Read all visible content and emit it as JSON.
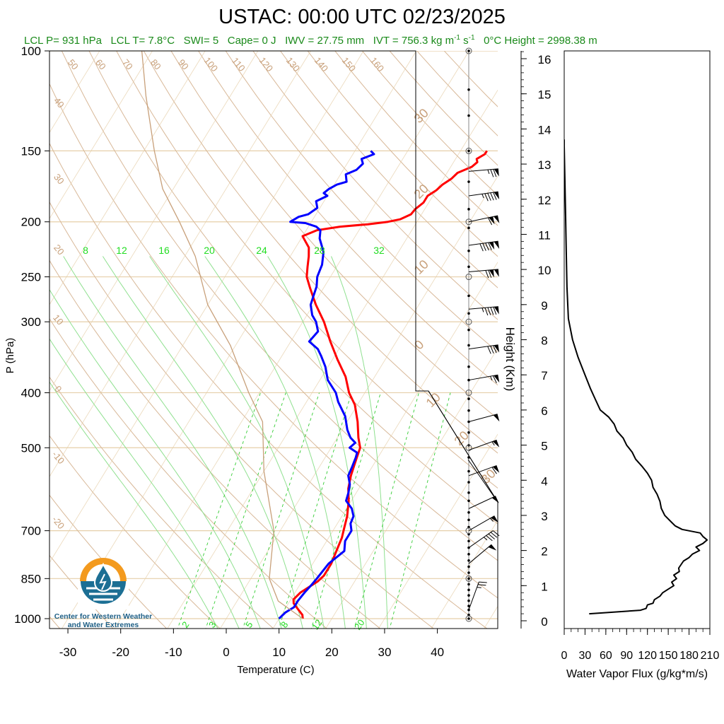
{
  "header": {
    "title": "USTAC: 00:00 UTC 02/23/2025",
    "lcl_p": "LCL P= 931 hPa",
    "lcl_t": "LCL T= 7.8°C",
    "swi": "SWI= 5",
    "cape": "Cape= 0 J",
    "iwv": "IWV = 27.75 mm",
    "ivt_prefix": "IVT = 756.3 kg m",
    "ivt_mid": " s",
    "ivt_exp": "-1",
    "freezing": "0°C Height = 2998.38 m"
  },
  "logo": {
    "line1": "Center for Western Weather",
    "line2": "and Water Extremes",
    "colors": {
      "sun": "#f39a1e",
      "water": "#1c6f94",
      "drop": "#ffffff"
    }
  },
  "chart_data": [
    {
      "type": "line",
      "subtype": "skew-t log-p",
      "xlabel": "Temperature (C)",
      "ylabel": "P (hPa)",
      "xlim": [
        -34,
        48
      ],
      "ylim": [
        1050,
        100
      ],
      "y_scale": "log",
      "x_ticks": [
        -30,
        -20,
        -10,
        0,
        10,
        20,
        30,
        40
      ],
      "x_tick_labels": [
        "-30",
        "-20",
        "-10",
        "0",
        "10",
        "20",
        "30",
        "40"
      ],
      "y_ticks": [
        100,
        150,
        200,
        250,
        300,
        400,
        500,
        700,
        850,
        1000
      ],
      "y_tick_labels": [
        "100",
        "150",
        "200",
        "250",
        "300",
        "400",
        "500",
        "700",
        "850",
        "1000"
      ],
      "dry_adiabat_labels": [
        "-20",
        "-10",
        "0",
        "10",
        "20",
        "30",
        "40",
        "50",
        "60",
        "70",
        "80",
        "90",
        "100",
        "110",
        "120",
        "130",
        "140",
        "150",
        "160"
      ],
      "moist_adiabat_labels": [
        "8",
        "12",
        "16",
        "20",
        "24",
        "28",
        "32"
      ],
      "mixing_ratio_labels": [
        "2",
        "3",
        "5",
        "8",
        "12",
        "20"
      ],
      "isotherm_box_labels": [
        "30",
        "20",
        "10",
        "0",
        "-10",
        "-20",
        "-30"
      ],
      "colors": {
        "temperature": "#ff0000",
        "dewpoint": "#0000ff",
        "parcel": "#c8a07a",
        "dry_adiabat": "#d8b898",
        "moist_adiabat": "#8fe08f",
        "mixing_ratio": "#33cc33",
        "isobar": "#e6cfa9",
        "adiabat_label": "#c8a07a",
        "moist_label": "#22dd22"
      },
      "series": [
        {
          "name": "",
          "role": "temperature",
          "points": [
            [
              14.5,
              1000
            ],
            [
              14,
              985
            ],
            [
              13,
              970
            ],
            [
              12,
              955
            ],
            [
              11,
              940
            ],
            [
              10.5,
              925
            ],
            [
              11,
              900
            ],
            [
              12,
              880
            ],
            [
              13,
              860
            ],
            [
              13.5,
              840
            ],
            [
              13.5,
              800
            ],
            [
              13,
              760
            ],
            [
              12.5,
              720
            ],
            [
              12,
              700
            ],
            [
              11,
              660
            ],
            [
              9.5,
              620
            ],
            [
              8,
              590
            ],
            [
              7,
              560
            ],
            [
              6.5,
              540
            ],
            [
              6,
              520
            ],
            [
              5.5,
              500
            ],
            [
              4,
              480
            ],
            [
              2,
              450
            ],
            [
              -0.5,
              420
            ],
            [
              -3,
              400
            ],
            [
              -5.5,
              375
            ],
            [
              -9,
              350
            ],
            [
              -12.5,
              325
            ],
            [
              -16,
              300
            ],
            [
              -19.5,
              280
            ],
            [
              -22.5,
              262
            ],
            [
              -24.5,
              250
            ],
            [
              -25.5,
              240
            ],
            [
              -26.5,
              230
            ],
            [
              -27.5,
              222
            ],
            [
              -29.5,
              214
            ],
            [
              -30,
              212
            ],
            [
              -28,
              207
            ],
            [
              -24,
              204
            ],
            [
              -19,
              202
            ],
            [
              -15.5,
              200
            ],
            [
              -13.5,
              198
            ],
            [
              -12,
              194
            ],
            [
              -11.8,
              190
            ],
            [
              -11,
              185
            ],
            [
              -11,
              180
            ],
            [
              -10,
              176
            ],
            [
              -9.5,
              172
            ],
            [
              -8.5,
              168
            ],
            [
              -8,
              164
            ],
            [
              -6,
              160
            ],
            [
              -5.5,
              157
            ],
            [
              -6,
              155
            ],
            [
              -5,
              152
            ],
            [
              -5,
              150
            ]
          ]
        },
        {
          "name": "",
          "role": "dewpoint",
          "points": [
            [
              10,
              1000
            ],
            [
              10.5,
              975
            ],
            [
              11.5,
              955
            ],
            [
              11.5,
              930
            ],
            [
              11.8,
              900
            ],
            [
              12.2,
              875
            ],
            [
              12.5,
              850
            ],
            [
              13,
              800
            ],
            [
              14.5,
              760
            ],
            [
              13.5,
              730
            ],
            [
              13.5,
              700
            ],
            [
              12.5,
              680
            ],
            [
              12.2,
              660
            ],
            [
              11,
              640
            ],
            [
              9,
              620
            ],
            [
              8.5,
              600
            ],
            [
              7.8,
              580
            ],
            [
              6.5,
              560
            ],
            [
              6.2,
              540
            ],
            [
              5.8,
              520
            ],
            [
              5.5,
              510
            ],
            [
              3.5,
              500
            ],
            [
              4,
              490
            ],
            [
              2.5,
              480
            ],
            [
              1,
              465
            ],
            [
              -1,
              440
            ],
            [
              -4,
              415
            ],
            [
              -5.5,
              400
            ],
            [
              -8.5,
              380
            ],
            [
              -10.5,
              360
            ],
            [
              -12.5,
              345
            ],
            [
              -14,
              335
            ],
            [
              -16.5,
              325
            ],
            [
              -16,
              312
            ],
            [
              -17.5,
              300
            ],
            [
              -19,
              292
            ],
            [
              -20.5,
              280
            ],
            [
              -21,
              270
            ],
            [
              -21.5,
              260
            ],
            [
              -22.5,
              250
            ],
            [
              -23,
              238
            ],
            [
              -24.2,
              226
            ],
            [
              -26.5,
              214
            ],
            [
              -27.3,
              207
            ],
            [
              -28.5,
              204
            ],
            [
              -31,
              201
            ],
            [
              -34,
              200
            ],
            [
              -33,
              196
            ],
            [
              -31.5,
              194
            ],
            [
              -30.5,
              189
            ],
            [
              -31.5,
              184
            ],
            [
              -30,
              180
            ],
            [
              -31,
              178
            ],
            [
              -30.5,
              175
            ],
            [
              -29.5,
              172
            ],
            [
              -28,
              170
            ],
            [
              -29,
              165
            ],
            [
              -27.5,
              162
            ],
            [
              -27,
              158
            ],
            [
              -27.8,
              155
            ],
            [
              -26,
              152
            ],
            [
              -27,
              150
            ]
          ]
        },
        {
          "name": "",
          "role": "parcel",
          "points": [
            [
              14.5,
              1000
            ],
            [
              7.8,
              931
            ],
            [
              3.5,
              850
            ],
            [
              -1.2,
              700
            ],
            [
              -10,
              550
            ],
            [
              -16,
              450
            ],
            [
              -22,
              400
            ],
            [
              -31,
              330
            ],
            [
              -40,
              280
            ],
            [
              -48,
              230
            ],
            [
              -55,
              200
            ],
            [
              -62,
              175
            ],
            [
              -68,
              150
            ],
            [
              -76,
              120
            ],
            [
              -82,
              100
            ]
          ]
        }
      ]
    },
    {
      "type": "line",
      "subtype": "wind barbs (knots)",
      "barbs": [
        {
          "p": 965,
          "dir": 200,
          "spd": 25
        },
        {
          "p": 800,
          "dir": 230,
          "spd": 50
        },
        {
          "p": 750,
          "dir": 235,
          "spd": 45
        },
        {
          "p": 700,
          "dir": 240,
          "spd": 55
        },
        {
          "p": 640,
          "dir": 245,
          "spd": 50
        },
        {
          "p": 560,
          "dir": 250,
          "spd": 60
        },
        {
          "p": 505,
          "dir": 250,
          "spd": 55
        },
        {
          "p": 450,
          "dir": 255,
          "spd": 50
        },
        {
          "p": 380,
          "dir": 260,
          "spd": 65
        },
        {
          "p": 335,
          "dir": 262,
          "spd": 80
        },
        {
          "p": 285,
          "dir": 265,
          "spd": 95
        },
        {
          "p": 245,
          "dir": 265,
          "spd": 120
        },
        {
          "p": 220,
          "dir": 262,
          "spd": 140
        },
        {
          "p": 200,
          "dir": 258,
          "spd": 110
        },
        {
          "p": 180,
          "dir": 262,
          "spd": 95
        },
        {
          "p": 163,
          "dir": 265,
          "spd": 75
        }
      ],
      "level_marks_filled": [
        1000,
        985,
        965,
        950,
        930,
        910,
        890,
        870,
        850,
        830,
        810,
        790,
        770,
        750,
        730,
        710,
        690,
        670,
        650,
        620,
        600,
        575,
        550,
        520,
        495,
        470,
        450,
        430,
        410,
        380,
        360,
        330,
        310,
        290,
        270,
        240,
        225,
        205,
        190,
        170,
        150,
        130,
        117,
        100
      ],
      "level_marks_open": [
        1000,
        850,
        700,
        500,
        400,
        300,
        250,
        200,
        150,
        100
      ]
    },
    {
      "type": "line",
      "title": "",
      "xlabel": "Water Vapor Flux (g/kg*m/s)",
      "ylabel": "Height (Km)",
      "xlim": [
        0,
        210
      ],
      "ylim": [
        0,
        16
      ],
      "x_ticks": [
        0,
        30,
        60,
        90,
        120,
        150,
        180,
        210
      ],
      "x_tick_labels": [
        "0",
        "30",
        "60",
        "90",
        "120",
        "150",
        "180",
        "210"
      ],
      "y_ticks": [
        0,
        1,
        2,
        3,
        4,
        5,
        6,
        7,
        8,
        9,
        10,
        11,
        12,
        13,
        14,
        15,
        16
      ],
      "y_tick_labels": [
        "0",
        "1",
        "2",
        "3",
        "4",
        "5",
        "6",
        "7",
        "8",
        "9",
        "10",
        "11",
        "12",
        "13",
        "14",
        "15",
        "16"
      ],
      "series": [
        {
          "name": "",
          "points": [
            [
              36,
              0.2
            ],
            [
              110,
              0.3
            ],
            [
              118,
              0.35
            ],
            [
              120,
              0.45
            ],
            [
              128,
              0.5
            ],
            [
              130,
              0.6
            ],
            [
              138,
              0.7
            ],
            [
              142,
              0.8
            ],
            [
              150,
              0.9
            ],
            [
              158,
              1
            ],
            [
              155,
              1.1
            ],
            [
              162,
              1.2
            ],
            [
              158,
              1.3
            ],
            [
              166,
              1.4
            ],
            [
              165,
              1.5
            ],
            [
              172,
              1.7
            ],
            [
              180,
              1.8
            ],
            [
              185,
              1.9
            ],
            [
              195,
              2.0
            ],
            [
              190,
              2.1
            ],
            [
              200,
              2.2
            ],
            [
              206,
              2.3
            ],
            [
              200,
              2.4
            ],
            [
              196,
              2.5
            ],
            [
              170,
              2.6
            ],
            [
              160,
              2.7
            ],
            [
              155,
              2.8
            ],
            [
              150,
              2.9
            ],
            [
              145,
              3.0
            ],
            [
              140,
              3.2
            ],
            [
              138,
              3.4
            ],
            [
              134,
              3.6
            ],
            [
              128,
              3.8
            ],
            [
              126,
              4.0
            ],
            [
              120,
              4.2
            ],
            [
              112,
              4.4
            ],
            [
              103,
              4.6
            ],
            [
              98,
              4.8
            ],
            [
              90,
              5.0
            ],
            [
              85,
              5.2
            ],
            [
              76,
              5.4
            ],
            [
              72,
              5.6
            ],
            [
              64,
              5.8
            ],
            [
              52,
              6.0
            ],
            [
              45,
              6.3
            ],
            [
              38,
              6.6
            ],
            [
              30,
              7.0
            ],
            [
              20,
              7.5
            ],
            [
              12,
              8.0
            ],
            [
              6,
              8.6
            ],
            [
              4,
              9.5
            ],
            [
              3,
              10.5
            ],
            [
              2,
              11.5
            ],
            [
              1,
              12.5
            ],
            [
              0,
              13.5
            ],
            [
              0,
              13.7
            ]
          ]
        }
      ]
    }
  ]
}
